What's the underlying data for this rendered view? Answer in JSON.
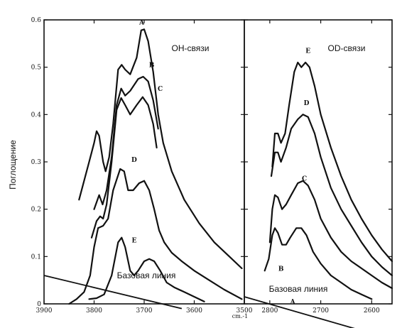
{
  "ylabel": "Поглощение",
  "unit_label": "cm.-1",
  "chart_data": [
    {
      "type": "line",
      "panel": "left",
      "title": "OH-связи",
      "baseline_label": "Базовая линия",
      "xlim": [
        3900,
        3500
      ],
      "ylim": [
        0,
        0.6
      ],
      "x_ticks": [
        3900,
        3800,
        3700,
        3600,
        3500
      ],
      "y_ticks": [
        0,
        0.1,
        0.2,
        0.3,
        0.4,
        0.5,
        0.6
      ],
      "series": [
        {
          "name": "A",
          "label_at": [
            3705,
            0.59
          ],
          "points": [
            [
              3830,
              0.22
            ],
            [
              3810,
              0.3
            ],
            [
              3800,
              0.34
            ],
            [
              3795,
              0.365
            ],
            [
              3790,
              0.355
            ],
            [
              3782,
              0.3
            ],
            [
              3777,
              0.28
            ],
            [
              3770,
              0.31
            ],
            [
              3762,
              0.38
            ],
            [
              3752,
              0.495
            ],
            [
              3745,
              0.505
            ],
            [
              3738,
              0.495
            ],
            [
              3728,
              0.485
            ],
            [
              3715,
              0.52
            ],
            [
              3706,
              0.578
            ],
            [
              3700,
              0.58
            ],
            [
              3692,
              0.555
            ],
            [
              3682,
              0.49
            ],
            [
              3672,
              0.4
            ],
            [
              3662,
              0.34
            ],
            [
              3645,
              0.28
            ],
            [
              3620,
              0.22
            ],
            [
              3590,
              0.17
            ],
            [
              3560,
              0.13
            ],
            [
              3530,
              0.1
            ],
            [
              3505,
              0.075
            ]
          ]
        },
        {
          "name": "B",
          "label_at": [
            3685,
            0.5
          ],
          "points": [
            [
              3800,
              0.2
            ],
            [
              3790,
              0.23
            ],
            [
              3783,
              0.21
            ],
            [
              3775,
              0.24
            ],
            [
              3765,
              0.31
            ],
            [
              3755,
              0.42
            ],
            [
              3746,
              0.455
            ],
            [
              3738,
              0.44
            ],
            [
              3728,
              0.45
            ],
            [
              3712,
              0.475
            ],
            [
              3702,
              0.48
            ],
            [
              3692,
              0.47
            ],
            [
              3682,
              0.43
            ],
            [
              3672,
              0.37
            ]
          ]
        },
        {
          "name": "C",
          "label_at": [
            3668,
            0.45
          ],
          "points": [
            [
              3805,
              0.14
            ],
            [
              3795,
              0.175
            ],
            [
              3788,
              0.185
            ],
            [
              3782,
              0.18
            ],
            [
              3775,
              0.21
            ],
            [
              3765,
              0.3
            ],
            [
              3755,
              0.41
            ],
            [
              3746,
              0.435
            ],
            [
              3738,
              0.42
            ],
            [
              3728,
              0.4
            ],
            [
              3715,
              0.42
            ],
            [
              3703,
              0.437
            ],
            [
              3692,
              0.42
            ],
            [
              3682,
              0.38
            ],
            [
              3675,
              0.33
            ]
          ]
        },
        {
          "name": "D",
          "label_at": [
            3720,
            0.3
          ],
          "points": [
            [
              3850,
              0.0
            ],
            [
              3835,
              0.01
            ],
            [
              3820,
              0.025
            ],
            [
              3808,
              0.06
            ],
            [
              3800,
              0.12
            ],
            [
              3792,
              0.16
            ],
            [
              3782,
              0.165
            ],
            [
              3772,
              0.18
            ],
            [
              3762,
              0.24
            ],
            [
              3748,
              0.285
            ],
            [
              3740,
              0.28
            ],
            [
              3732,
              0.24
            ],
            [
              3722,
              0.24
            ],
            [
              3710,
              0.255
            ],
            [
              3700,
              0.26
            ],
            [
              3690,
              0.24
            ],
            [
              3680,
              0.2
            ],
            [
              3670,
              0.155
            ],
            [
              3660,
              0.13
            ],
            [
              3645,
              0.108
            ],
            [
              3625,
              0.09
            ],
            [
              3600,
              0.07
            ],
            [
              3570,
              0.05
            ],
            [
              3540,
              0.03
            ],
            [
              3505,
              0.01
            ]
          ]
        },
        {
          "name": "E",
          "label_at": [
            3720,
            0.13
          ],
          "points": [
            [
              3810,
              0.01
            ],
            [
              3795,
              0.012
            ],
            [
              3780,
              0.02
            ],
            [
              3765,
              0.06
            ],
            [
              3752,
              0.13
            ],
            [
              3745,
              0.14
            ],
            [
              3738,
              0.12
            ],
            [
              3728,
              0.07
            ],
            [
              3720,
              0.06
            ],
            [
              3712,
              0.07
            ],
            [
              3700,
              0.09
            ],
            [
              3690,
              0.095
            ],
            [
              3680,
              0.09
            ],
            [
              3668,
              0.07
            ],
            [
              3655,
              0.045
            ],
            [
              3640,
              0.035
            ],
            [
              3620,
              0.025
            ],
            [
              3600,
              0.015
            ],
            [
              3580,
              0.005
            ]
          ]
        }
      ],
      "baseline": {
        "x": [
          3900,
          3625
        ],
        "y": [
          0.06,
          -0.01
        ]
      }
    },
    {
      "type": "line",
      "panel": "right",
      "title": "OD-связи",
      "baseline_label": "Базовая линия",
      "xlim": [
        2850,
        2560
      ],
      "ylim": [
        0,
        0.6
      ],
      "x_ticks": [
        2800,
        2700,
        2600
      ],
      "series": [
        {
          "name": "E",
          "label_at": [
            2725,
            0.53
          ],
          "points": [
            [
              2795,
              0.29
            ],
            [
              2790,
              0.36
            ],
            [
              2784,
              0.36
            ],
            [
              2778,
              0.34
            ],
            [
              2770,
              0.36
            ],
            [
              2762,
              0.42
            ],
            [
              2752,
              0.49
            ],
            [
              2745,
              0.51
            ],
            [
              2738,
              0.5
            ],
            [
              2730,
              0.51
            ],
            [
              2722,
              0.5
            ],
            [
              2712,
              0.46
            ],
            [
              2700,
              0.4
            ],
            [
              2680,
              0.33
            ],
            [
              2660,
              0.27
            ],
            [
              2640,
              0.22
            ],
            [
              2620,
              0.18
            ],
            [
              2600,
              0.145
            ],
            [
              2580,
              0.115
            ],
            [
              2560,
              0.09
            ]
          ]
        },
        {
          "name": "D",
          "label_at": [
            2728,
            0.42
          ],
          "points": [
            [
              2797,
              0.27
            ],
            [
              2790,
              0.32
            ],
            [
              2784,
              0.32
            ],
            [
              2778,
              0.3
            ],
            [
              2768,
              0.33
            ],
            [
              2758,
              0.37
            ],
            [
              2745,
              0.39
            ],
            [
              2735,
              0.4
            ],
            [
              2725,
              0.395
            ],
            [
              2712,
              0.36
            ],
            [
              2700,
              0.31
            ],
            [
              2680,
              0.245
            ],
            [
              2660,
              0.2
            ],
            [
              2640,
              0.165
            ],
            [
              2620,
              0.13
            ],
            [
              2600,
              0.1
            ],
            [
              2580,
              0.078
            ],
            [
              2560,
              0.06
            ]
          ]
        },
        {
          "name": "C",
          "label_at": [
            2732,
            0.26
          ],
          "points": [
            [
              2800,
              0.13
            ],
            [
              2795,
              0.2
            ],
            [
              2790,
              0.23
            ],
            [
              2784,
              0.225
            ],
            [
              2776,
              0.2
            ],
            [
              2768,
              0.21
            ],
            [
              2758,
              0.23
            ],
            [
              2745,
              0.255
            ],
            [
              2735,
              0.26
            ],
            [
              2725,
              0.25
            ],
            [
              2712,
              0.22
            ],
            [
              2700,
              0.18
            ],
            [
              2680,
              0.14
            ],
            [
              2660,
              0.11
            ],
            [
              2640,
              0.09
            ],
            [
              2620,
              0.075
            ],
            [
              2600,
              0.06
            ],
            [
              2580,
              0.045
            ],
            [
              2560,
              0.033
            ]
          ]
        },
        {
          "name": "B",
          "label_at": [
            2778,
            0.07
          ],
          "points": [
            [
              2810,
              0.07
            ],
            [
              2802,
              0.095
            ],
            [
              2795,
              0.145
            ],
            [
              2790,
              0.16
            ],
            [
              2784,
              0.15
            ],
            [
              2776,
              0.125
            ],
            [
              2768,
              0.125
            ],
            [
              2760,
              0.14
            ],
            [
              2748,
              0.16
            ],
            [
              2738,
              0.16
            ],
            [
              2728,
              0.145
            ],
            [
              2715,
              0.11
            ],
            [
              2700,
              0.085
            ],
            [
              2680,
              0.06
            ],
            [
              2660,
              0.045
            ],
            [
              2640,
              0.03
            ],
            [
              2620,
              0.02
            ],
            [
              2600,
              0.01
            ]
          ]
        },
        {
          "name": "A",
          "label_at": [
            2755,
            0.0
          ],
          "points": []
        }
      ],
      "baseline": {
        "x": [
          2850,
          2560
        ],
        "y": [
          0.015,
          -0.075
        ]
      }
    }
  ]
}
